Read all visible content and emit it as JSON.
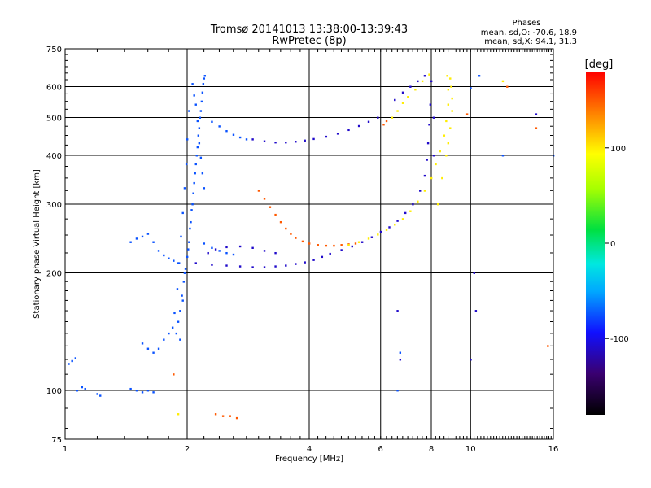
{
  "chart_data": {
    "type": "scatter",
    "title": "Tromsø 20141013 13:38:00-13:39:43",
    "subtitle": "RwPretec (8p)",
    "stats": {
      "heading": "Phases",
      "line1": "mean, sd,O: -70.6, 18.9",
      "line2": "mean, sd,X:  94.1, 31.3"
    },
    "xlabel": "Frequency [MHz]",
    "ylabel": "Stationary phase Virtual Height [km]",
    "x_scale": "log",
    "y_scale": "log",
    "xlim": [
      1,
      16
    ],
    "ylim": [
      75,
      750
    ],
    "x_ticks": [
      1,
      2,
      4,
      6,
      8,
      10,
      16
    ],
    "x_tick_labels": [
      "1",
      "2",
      "4",
      "6",
      "8",
      "10",
      "16"
    ],
    "y_ticks": [
      75,
      100,
      200,
      300,
      400,
      500,
      600,
      750
    ],
    "y_tick_labels": [
      "75",
      "100",
      "200",
      "300",
      "400",
      "500",
      "600",
      "750"
    ],
    "grid": true,
    "colorbar": {
      "label": "[deg]",
      "min": -180,
      "max": 180,
      "ticks": [
        100,
        0,
        -100
      ],
      "tick_labels": [
        "100",
        "0",
        "-100"
      ],
      "colormap": "rainbow"
    },
    "series": [
      {
        "phase": -75,
        "points": [
          [
            1.88,
            140
          ],
          [
            1.9,
            150
          ],
          [
            1.92,
            160
          ],
          [
            1.94,
            175
          ],
          [
            1.96,
            190
          ],
          [
            1.98,
            205
          ],
          [
            2.0,
            220
          ],
          [
            2.02,
            240
          ],
          [
            2.04,
            270
          ],
          [
            2.06,
            300
          ],
          [
            2.08,
            340
          ],
          [
            2.1,
            380
          ],
          [
            2.12,
            420
          ],
          [
            2.14,
            470
          ],
          [
            2.16,
            520
          ],
          [
            2.18,
            580
          ],
          [
            2.2,
            630
          ],
          [
            1.92,
            135
          ],
          [
            1.95,
            170
          ],
          [
            1.97,
            200
          ],
          [
            2.01,
            230
          ],
          [
            2.03,
            260
          ],
          [
            2.05,
            290
          ],
          [
            2.07,
            320
          ],
          [
            2.09,
            360
          ],
          [
            2.11,
            400
          ],
          [
            2.13,
            450
          ],
          [
            2.15,
            500
          ],
          [
            2.17,
            550
          ],
          [
            2.19,
            610
          ],
          [
            2.21,
            640
          ],
          [
            1.84,
            145
          ],
          [
            1.86,
            158
          ],
          [
            1.89,
            182
          ],
          [
            1.91,
            212
          ],
          [
            1.93,
            248
          ],
          [
            1.95,
            285
          ],
          [
            1.97,
            330
          ],
          [
            1.99,
            380
          ],
          [
            2.0,
            440
          ],
          [
            2.02,
            520
          ],
          [
            2.06,
            610
          ],
          [
            2.08,
            570
          ],
          [
            2.1,
            540
          ],
          [
            2.12,
            490
          ],
          [
            2.14,
            430
          ],
          [
            2.16,
            395
          ],
          [
            2.18,
            360
          ],
          [
            2.2,
            330
          ],
          [
            1.55,
            132
          ],
          [
            1.6,
            128
          ],
          [
            1.65,
            125
          ],
          [
            1.7,
            128
          ],
          [
            1.75,
            135
          ],
          [
            1.8,
            140
          ],
          [
            1.45,
            240
          ],
          [
            1.5,
            245
          ],
          [
            1.55,
            248
          ],
          [
            1.6,
            252
          ],
          [
            1.65,
            240
          ],
          [
            1.7,
            228
          ],
          [
            1.75,
            222
          ],
          [
            1.8,
            218
          ],
          [
            1.85,
            215
          ],
          [
            1.9,
            212
          ],
          [
            2.3,
            488
          ],
          [
            2.4,
            475
          ],
          [
            2.5,
            462
          ],
          [
            2.6,
            452
          ],
          [
            2.7,
            445
          ],
          [
            2.8,
            440
          ],
          [
            1.02,
            117
          ],
          [
            1.04,
            119
          ],
          [
            1.06,
            121
          ],
          [
            1.07,
            100
          ],
          [
            1.1,
            102
          ],
          [
            1.12,
            101
          ],
          [
            1.2,
            98
          ],
          [
            1.22,
            97
          ],
          [
            1.45,
            101
          ],
          [
            1.5,
            100
          ],
          [
            1.55,
            99
          ],
          [
            1.6,
            100
          ],
          [
            1.65,
            99
          ],
          [
            2.2,
            238
          ],
          [
            2.3,
            232
          ],
          [
            2.4,
            228
          ],
          [
            2.5,
            225
          ],
          [
            2.6,
            223
          ],
          [
            6.6,
            100
          ],
          [
            6.7,
            125
          ],
          [
            10.5,
            640
          ],
          [
            16,
            400
          ],
          [
            12.0,
            400
          ],
          [
            10.0,
            595
          ]
        ]
      },
      {
        "phase": -110,
        "points": [
          [
            2.1,
            212
          ],
          [
            2.3,
            210
          ],
          [
            2.5,
            209
          ],
          [
            2.7,
            208
          ],
          [
            2.9,
            207
          ],
          [
            3.1,
            207
          ],
          [
            3.3,
            208
          ],
          [
            3.5,
            209
          ],
          [
            3.7,
            211
          ],
          [
            3.9,
            213
          ],
          [
            4.1,
            216
          ],
          [
            4.3,
            220
          ],
          [
            4.5,
            224
          ],
          [
            4.8,
            229
          ],
          [
            5.1,
            234
          ],
          [
            5.4,
            240
          ],
          [
            5.7,
            247
          ],
          [
            6.0,
            255
          ],
          [
            6.3,
            262
          ],
          [
            6.6,
            272
          ],
          [
            6.9,
            285
          ],
          [
            7.2,
            300
          ],
          [
            7.5,
            325
          ],
          [
            7.7,
            355
          ],
          [
            7.8,
            390
          ],
          [
            7.85,
            430
          ],
          [
            7.9,
            480
          ],
          [
            7.95,
            540
          ],
          [
            8.0,
            620
          ],
          [
            2.9,
            440
          ],
          [
            3.1,
            435
          ],
          [
            3.3,
            432
          ],
          [
            3.5,
            432
          ],
          [
            3.7,
            434
          ],
          [
            3.9,
            437
          ],
          [
            4.1,
            441
          ],
          [
            4.4,
            447
          ],
          [
            4.7,
            455
          ],
          [
            5.0,
            465
          ],
          [
            5.3,
            476
          ],
          [
            5.6,
            488
          ],
          [
            5.9,
            500
          ],
          [
            6.5,
            555
          ],
          [
            6.8,
            580
          ],
          [
            7.1,
            600
          ],
          [
            7.4,
            620
          ],
          [
            7.7,
            640
          ],
          [
            2.25,
            225
          ],
          [
            2.35,
            230
          ],
          [
            2.5,
            233
          ],
          [
            2.7,
            234
          ],
          [
            2.9,
            232
          ],
          [
            3.1,
            228
          ],
          [
            3.3,
            225
          ],
          [
            8.1,
            500
          ],
          [
            8.1,
            400
          ],
          [
            10.2,
            200
          ],
          [
            10.3,
            160
          ],
          [
            14.5,
            510
          ],
          [
            10.0,
            120
          ],
          [
            6.6,
            160
          ],
          [
            6.7,
            120
          ]
        ]
      },
      {
        "phase": 150,
        "points": [
          [
            3.0,
            325
          ],
          [
            3.1,
            310
          ],
          [
            3.2,
            295
          ],
          [
            3.3,
            282
          ],
          [
            3.4,
            270
          ],
          [
            3.5,
            260
          ],
          [
            3.6,
            252
          ],
          [
            3.7,
            246
          ],
          [
            3.85,
            241
          ],
          [
            4.0,
            238
          ],
          [
            4.2,
            236
          ],
          [
            4.4,
            235
          ],
          [
            4.6,
            235
          ],
          [
            4.8,
            236
          ],
          [
            5.0,
            237
          ],
          [
            5.2,
            238
          ],
          [
            1.85,
            110
          ],
          [
            2.35,
            87
          ],
          [
            2.45,
            86
          ],
          [
            2.55,
            86
          ],
          [
            2.65,
            85
          ],
          [
            6.1,
            480
          ],
          [
            6.2,
            490
          ],
          [
            9.8,
            510
          ],
          [
            15.5,
            130
          ],
          [
            14.5,
            470
          ],
          [
            12.3,
            600
          ]
        ]
      },
      {
        "phase": 100,
        "points": [
          [
            5.0,
            236
          ],
          [
            5.3,
            240
          ],
          [
            5.6,
            245
          ],
          [
            5.9,
            251
          ],
          [
            6.2,
            258
          ],
          [
            6.5,
            266
          ],
          [
            6.8,
            275
          ],
          [
            7.1,
            288
          ],
          [
            7.4,
            305
          ],
          [
            7.7,
            325
          ],
          [
            8.0,
            350
          ],
          [
            8.2,
            380
          ],
          [
            8.4,
            410
          ],
          [
            8.6,
            450
          ],
          [
            8.7,
            490
          ],
          [
            8.8,
            540
          ],
          [
            8.8,
            590
          ],
          [
            8.75,
            640
          ],
          [
            6.4,
            500
          ],
          [
            6.6,
            520
          ],
          [
            6.8,
            545
          ],
          [
            7.0,
            565
          ],
          [
            7.3,
            590
          ],
          [
            7.6,
            620
          ],
          [
            7.9,
            645
          ],
          [
            8.3,
            300
          ],
          [
            8.5,
            350
          ],
          [
            8.7,
            400
          ],
          [
            8.8,
            430
          ],
          [
            8.9,
            470
          ],
          [
            9.0,
            520
          ],
          [
            9.0,
            560
          ],
          [
            8.95,
            600
          ],
          [
            8.9,
            630
          ],
          [
            1.9,
            87
          ],
          [
            12.0,
            620
          ]
        ]
      }
    ]
  }
}
